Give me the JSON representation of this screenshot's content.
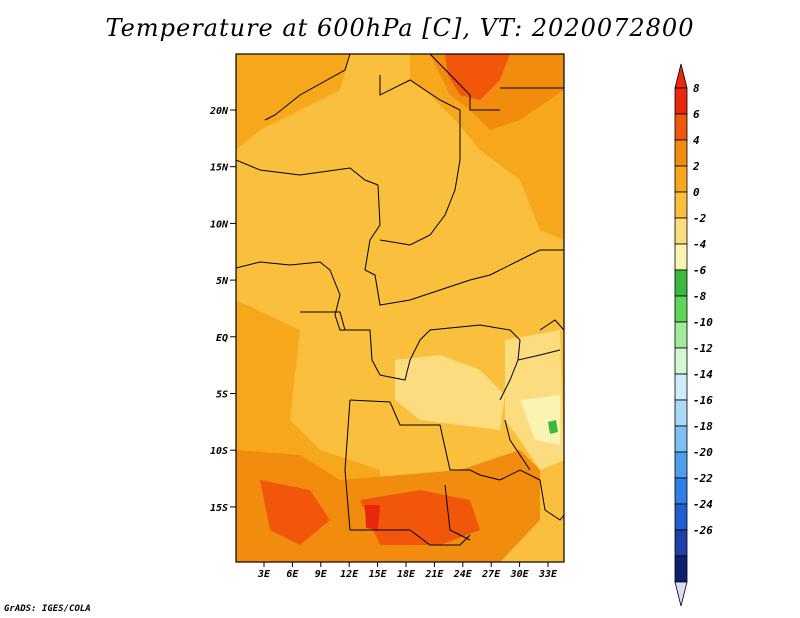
{
  "title": "Temperature at 600hPa [C], VT: 2020072800",
  "credit": "GrADS: IGES/COLA",
  "map": {
    "lat_ticks": [
      "20N",
      "15N",
      "10N",
      "5N",
      "EQ",
      "5S",
      "10S",
      "15S"
    ],
    "lon_ticks": [
      "3E",
      "6E",
      "9E",
      "12E",
      "15E",
      "18E",
      "21E",
      "24E",
      "27E",
      "30E",
      "33E"
    ]
  },
  "colorbar": {
    "labels": [
      "8",
      "6",
      "4",
      "2",
      "0",
      "-2",
      "-4",
      "-6",
      "-8",
      "-10",
      "-12",
      "-14",
      "-16",
      "-18",
      "-20",
      "-22",
      "-24",
      "-26"
    ],
    "colors": [
      "#e8270d",
      "#f2560a",
      "#f28c0f",
      "#f6a71c",
      "#f9bf3d",
      "#fbdd7f",
      "#fbf3b1",
      "#3bb93c",
      "#5fd65a",
      "#a3eb9b",
      "#d4f6d2",
      "#cdebf8",
      "#a9d9f6",
      "#7fbff2",
      "#4f9def",
      "#2f7fe6",
      "#1f5fd0",
      "#1f3fa8",
      "#0d1f6f"
    ],
    "top_arrow_color": "#e8270d",
    "bottom_arrow_color": "#dcdcf6"
  }
}
